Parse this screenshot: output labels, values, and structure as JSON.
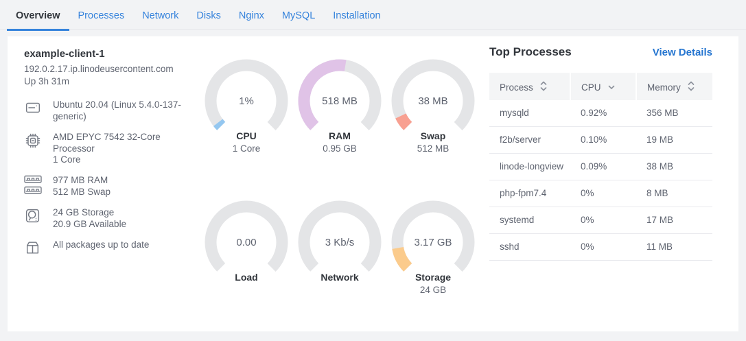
{
  "tabs": [
    {
      "label": "Overview",
      "active": true
    },
    {
      "label": "Processes",
      "active": false
    },
    {
      "label": "Network",
      "active": false
    },
    {
      "label": "Disks",
      "active": false
    },
    {
      "label": "Nginx",
      "active": false
    },
    {
      "label": "MySQL",
      "active": false
    },
    {
      "label": "Installation",
      "active": false
    }
  ],
  "host": {
    "name": "example-client-1",
    "hostname": "192.0.2.17.ip.linodeusercontent.com",
    "uptime": "Up 3h 31m",
    "specs": [
      {
        "icons": [
          "os-icon"
        ],
        "lines": [
          "Ubuntu 20.04 (Linux 5.4.0-137-generic)"
        ]
      },
      {
        "icons": [
          "cpu-icon"
        ],
        "lines": [
          "AMD EPYC 7542 32-Core Processor",
          "1 Core"
        ]
      },
      {
        "icons": [
          "ram-icon",
          "ram-icon"
        ],
        "lines": [
          "977 MB RAM",
          "512 MB Swap"
        ]
      },
      {
        "icons": [
          "storage-icon"
        ],
        "lines": [
          "24 GB Storage",
          "20.9 GB Available"
        ]
      },
      {
        "icons": [
          "packages-icon"
        ],
        "lines": [
          "All packages up to date"
        ]
      }
    ]
  },
  "chart_data": {
    "type": "gauge",
    "arc_degrees": 270,
    "gauges": [
      {
        "id": "cpu",
        "value_label": "1%",
        "label": "CPU",
        "sublabel": "1 Core",
        "value": 1,
        "max": 100,
        "percent": 1,
        "color": "#94c7f0"
      },
      {
        "id": "ram",
        "value_label": "518 MB",
        "label": "RAM",
        "sublabel": "0.95 GB",
        "value": 518,
        "max": 972,
        "percent": 53.3,
        "color": "#e0c3e7"
      },
      {
        "id": "swap",
        "value_label": "38 MB",
        "label": "Swap",
        "sublabel": "512 MB",
        "value": 38,
        "max": 512,
        "percent": 7.4,
        "color": "#f8a091"
      },
      {
        "id": "load",
        "value_label": "0.00",
        "label": "Load",
        "sublabel": "",
        "value": 0,
        "max": null,
        "percent": 0,
        "color": "#94c7f0"
      },
      {
        "id": "network",
        "value_label": "3 Kb/s",
        "label": "Network",
        "sublabel": "",
        "value": 3,
        "max": null,
        "percent": 0,
        "color": "#94c7f0"
      },
      {
        "id": "storage",
        "value_label": "3.17 GB",
        "label": "Storage",
        "sublabel": "24 GB",
        "value": 3.17,
        "max": 24,
        "percent": 13.2,
        "color": "#fbcb8c"
      }
    ]
  },
  "top_processes": {
    "title": "Top Processes",
    "link": "View Details",
    "columns": [
      {
        "label": "Process",
        "sort": "none"
      },
      {
        "label": "CPU",
        "sort": "desc"
      },
      {
        "label": "Memory",
        "sort": "none"
      }
    ],
    "rows": [
      {
        "process": "mysqld",
        "cpu": "0.92%",
        "memory": "356 MB"
      },
      {
        "process": "f2b/server",
        "cpu": "0.10%",
        "memory": "19 MB"
      },
      {
        "process": "linode-longview",
        "cpu": "0.09%",
        "memory": "38 MB"
      },
      {
        "process": "php-fpm7.4",
        "cpu": "0%",
        "memory": "8 MB"
      },
      {
        "process": "systemd",
        "cpu": "0%",
        "memory": "17 MB"
      },
      {
        "process": "sshd",
        "cpu": "0%",
        "memory": "11 MB"
      }
    ]
  },
  "colors": {
    "accent_blue": "#3683dc",
    "link_blue": "#2575d0",
    "gauge_track": "#e4e5e7",
    "page_bg": "#f2f3f5",
    "dark_text": "#32363c",
    "gray_text": "#5f6470"
  }
}
